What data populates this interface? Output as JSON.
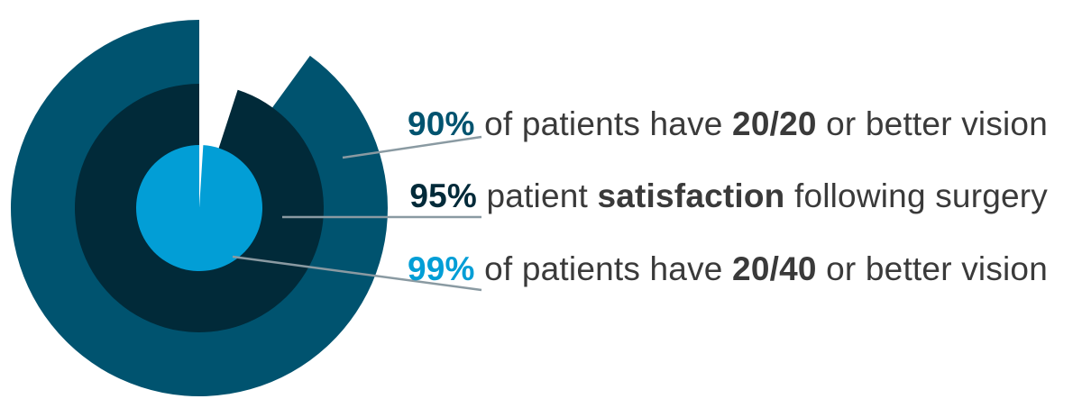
{
  "colors": {
    "outer": "#00536f",
    "middle": "#012a39",
    "inner": "#029ed6",
    "text": "#3a3a3a",
    "leader": "#8a9aa2",
    "background": "#ffffff"
  },
  "chart_data": {
    "type": "pie",
    "subtype": "nested-radial-percentage",
    "series": [
      {
        "name": "20/20 or better vision",
        "value": 90,
        "ring": "outer",
        "color": "#00536f"
      },
      {
        "name": "patient satisfaction following surgery",
        "value": 95,
        "ring": "middle",
        "color": "#012a39"
      },
      {
        "name": "20/40 or better vision",
        "value": 99,
        "ring": "inner",
        "color": "#029ed6"
      }
    ],
    "max": 100,
    "start": "12 o'clock",
    "direction": "counter-clockwise"
  },
  "stats": [
    {
      "pct": "90%",
      "pre": " of patients have ",
      "bold": "20/20",
      "post": " or better vision",
      "color": "#00536f"
    },
    {
      "pct": "95%",
      "pre": " patient ",
      "bold": "satisfaction",
      "post": " following surgery",
      "color": "#012a39"
    },
    {
      "pct": "99%",
      "pre": " of patients have ",
      "bold": "20/40",
      "post": " or better vision",
      "color": "#029ed6"
    }
  ]
}
